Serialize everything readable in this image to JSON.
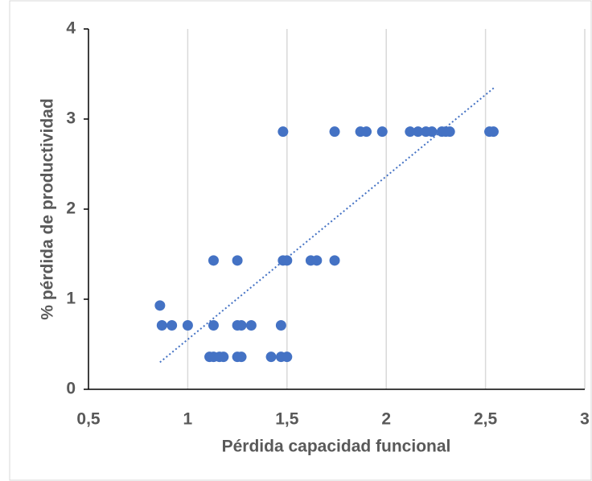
{
  "chart_data": {
    "type": "scatter",
    "x_label": "Pérdida capacidad funcional",
    "y_label": "% pérdida de productividad",
    "x": [
      1.48,
      1.74,
      1.87,
      1.9,
      1.98,
      2.12,
      2.16,
      2.2,
      2.23,
      2.28,
      2.3,
      2.32,
      2.52,
      2.54,
      1.13,
      1.25,
      1.48,
      1.5,
      1.62,
      1.65,
      1.74,
      0.86,
      0.87,
      0.92,
      1.0,
      1.13,
      1.25,
      1.27,
      1.32,
      1.47,
      1.11,
      1.13,
      1.16,
      1.18,
      1.25,
      1.27,
      1.42,
      1.47,
      1.5
    ],
    "values": [
      2.86,
      2.86,
      2.86,
      2.86,
      2.86,
      2.86,
      2.86,
      2.86,
      2.86,
      2.86,
      2.86,
      2.86,
      2.86,
      2.86,
      1.43,
      1.43,
      1.43,
      1.43,
      1.43,
      1.43,
      1.43,
      0.93,
      0.71,
      0.71,
      0.71,
      0.71,
      0.71,
      0.71,
      0.71,
      0.71,
      0.36,
      0.36,
      0.36,
      0.36,
      0.36,
      0.36,
      0.36,
      0.36,
      0.36
    ],
    "color": "#4472c4",
    "trendline": {
      "x": [
        0.86,
        2.55
      ],
      "y": [
        0.3,
        3.36
      ]
    },
    "xlim": [
      0.5,
      3
    ],
    "xticks": [
      {
        "value": 0.5,
        "label": "0,5"
      },
      1,
      {
        "value": 1.5,
        "label": "1,5"
      },
      2,
      {
        "value": 2.5,
        "label": "2,5"
      },
      3
    ],
    "ylim": [
      0,
      4
    ],
    "yticks": [
      0,
      1,
      2,
      3,
      4
    ],
    "grid": "x"
  }
}
